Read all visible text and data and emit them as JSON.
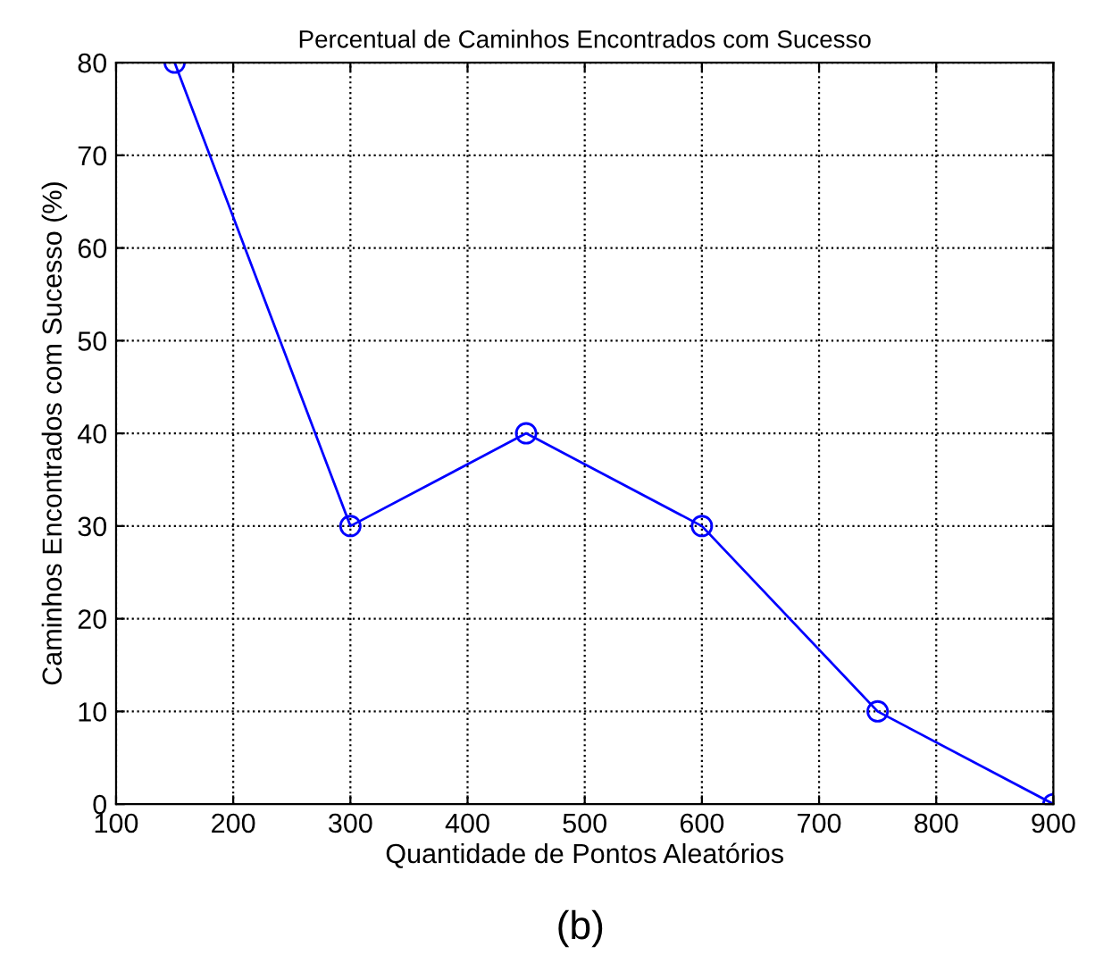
{
  "chart_data": {
    "type": "line",
    "title": "Percentual de Caminhos Encontrados com Sucesso",
    "xlabel": "Quantidade de Pontos Aleatórios",
    "ylabel": "Caminhos Encontrados com Sucesso (%)",
    "x": [
      150,
      300,
      450,
      600,
      750,
      900
    ],
    "series": [
      {
        "color": "#0000ff",
        "values": [
          80,
          30,
          40,
          30,
          10,
          0
        ]
      }
    ],
    "xlim": [
      100,
      900
    ],
    "xticks": [
      100,
      200,
      300,
      400,
      500,
      600,
      700,
      800,
      900
    ],
    "ylim": [
      0,
      80
    ],
    "yticks": [
      0,
      10,
      20,
      30,
      40,
      50,
      60,
      70,
      80
    ],
    "grid": true,
    "marker": "circle",
    "line_style": "solid",
    "annotations": [
      "(b)"
    ]
  }
}
